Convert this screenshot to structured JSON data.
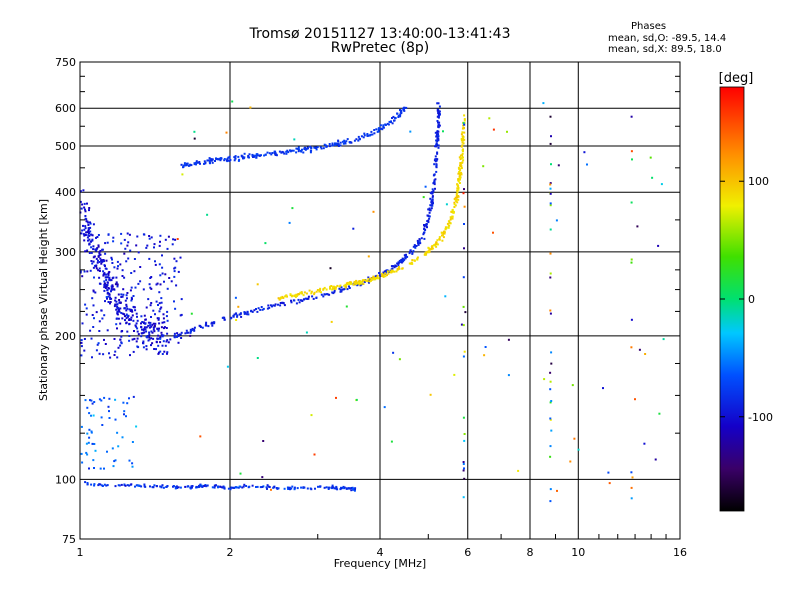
{
  "chart_data": {
    "type": "scatter",
    "title": "Tromsø 20151127 13:40:00-13:41:43",
    "subtitle": "RwPretec (8p)",
    "xlabel": "Frequency [MHz]",
    "ylabel": "Stationary phase Virtual Height [km]",
    "x_scale": "log",
    "y_scale": "log",
    "xlim": [
      1,
      16
    ],
    "ylim": [
      75,
      750
    ],
    "x_ticks": [
      "1",
      "2",
      "4",
      "6",
      "8",
      "10",
      "16"
    ],
    "x_tick_values": [
      1,
      2,
      4,
      6,
      8,
      10,
      16
    ],
    "y_ticks": [
      "75",
      "100",
      "200",
      "300",
      "400",
      "500",
      "600",
      "750"
    ],
    "y_tick_values": [
      75,
      100,
      200,
      300,
      400,
      500,
      600,
      750
    ],
    "grid": true,
    "colorbar": {
      "label": "[deg]",
      "ticks": [
        "100",
        "0",
        "-100"
      ],
      "tick_values": [
        100,
        0,
        -100
      ],
      "range": [
        -180,
        180
      ]
    },
    "phase_stats": {
      "heading": "Phases",
      "line_o": "mean, sd,O: -89.5, 14.4",
      "line_x": "mean, sd,X:  89.5, 18.0"
    },
    "series": [
      {
        "trace": "O-mode F-layer trace (blue)",
        "phase_deg": -90,
        "x": [
          1.55,
          1.7,
          1.9,
          2.1,
          2.4,
          2.8,
          3.2,
          3.6,
          4.0,
          4.3,
          4.6,
          4.85,
          5.0,
          5.1,
          5.18,
          5.22,
          5.25
        ],
        "y": [
          200,
          207,
          215,
          222,
          230,
          238,
          246,
          256,
          268,
          280,
          298,
          320,
          350,
          390,
          450,
          530,
          620
        ]
      },
      {
        "trace": "X-mode F-layer trace (yellow)",
        "phase_deg": 90,
        "x": [
          2.5,
          2.8,
          3.2,
          3.6,
          4.0,
          4.5,
          5.0,
          5.3,
          5.55,
          5.7,
          5.8,
          5.86,
          5.9
        ],
        "y": [
          240,
          245,
          252,
          258,
          266,
          280,
          300,
          320,
          350,
          390,
          440,
          500,
          580
        ]
      },
      {
        "trace": "Upper oblique trace (blue)",
        "phase_deg": -80,
        "x": [
          1.6,
          1.8,
          2.0,
          2.3,
          2.7,
          3.1,
          3.5,
          3.9,
          4.2,
          4.5
        ],
        "y": [
          455,
          465,
          470,
          478,
          488,
          498,
          512,
          535,
          560,
          600
        ]
      },
      {
        "trace": "E-layer echoes near 100 km",
        "phase_deg": -80,
        "x": [
          1.02,
          1.2,
          1.4,
          1.6,
          1.8,
          2.0,
          2.2,
          2.5,
          2.8,
          3.1,
          3.4,
          3.6
        ],
        "y": [
          98,
          97,
          97,
          96,
          97,
          96,
          97,
          96,
          96,
          96,
          96,
          95
        ]
      },
      {
        "trace": "Low-frequency F-region spread echoes",
        "phase_deg": -100,
        "x": [
          1.0,
          1.05,
          1.1,
          1.15,
          1.2,
          1.3,
          1.4,
          1.5
        ],
        "y": [
          380,
          320,
          280,
          250,
          230,
          215,
          205,
          198
        ]
      }
    ]
  }
}
